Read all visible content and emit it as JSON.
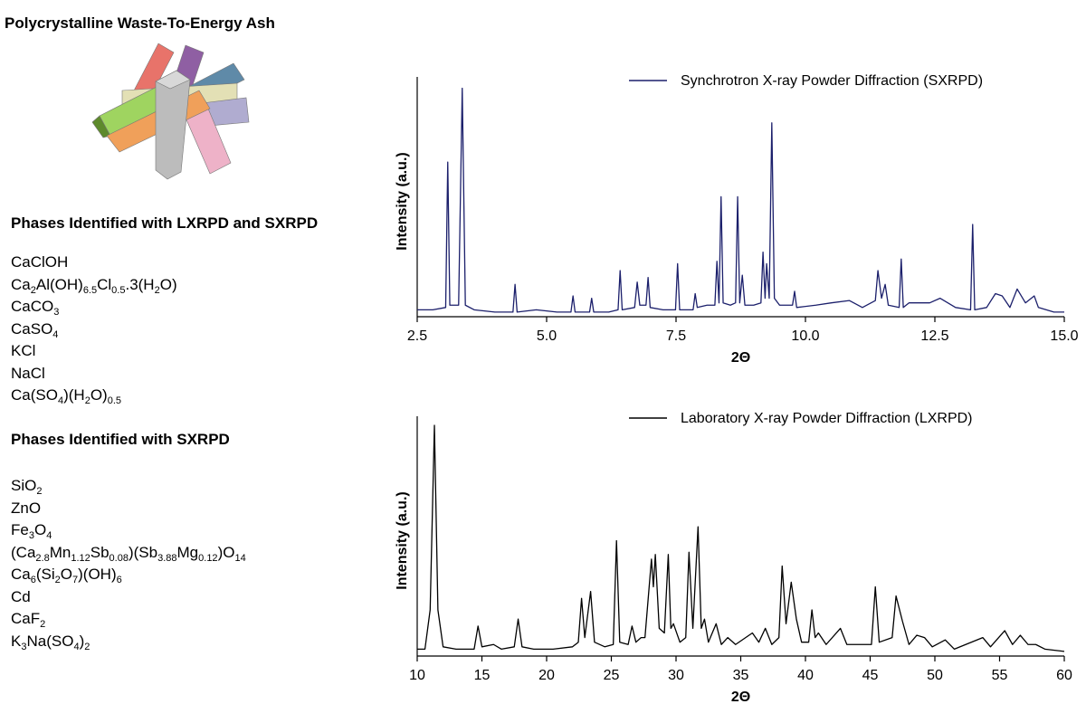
{
  "title": "Polycrystalline Waste-To-Energy Ash",
  "phases_both": {
    "heading": "Phases Identified with LXRPD and SXRPD",
    "formulas": [
      [
        "CaClOH"
      ],
      [
        "Ca",
        "2",
        "Al(OH)",
        "6.5",
        "Cl",
        "0.5",
        ".3(H",
        "2",
        "O)"
      ],
      [
        "CaCO",
        "3"
      ],
      [
        "CaSO",
        "4"
      ],
      [
        "KCl"
      ],
      [
        "NaCl"
      ],
      [
        "Ca(SO",
        "4",
        ")(H",
        "2",
        "O)",
        "0.5"
      ]
    ]
  },
  "phases_sxrpd": {
    "heading": "Phases Identified with SXRPD",
    "formulas": [
      [
        "SiO",
        "2"
      ],
      [
        "ZnO"
      ],
      [
        "Fe",
        "3",
        "O",
        "4"
      ],
      [
        "(Ca",
        "2.8",
        "Mn",
        "1.12",
        "Sb",
        "0.08",
        ")(Sb",
        "3.88",
        "Mg",
        "0.12",
        ")O",
        "14"
      ],
      [
        "Ca",
        "6",
        "(Si",
        "2",
        "O",
        "7",
        ")(OH)",
        "6"
      ],
      [
        "Cd"
      ],
      [
        "CaF",
        "2"
      ],
      [
        "K",
        "3",
        "Na(SO",
        "4",
        ")",
        "2"
      ]
    ]
  },
  "chart_data": [
    {
      "type": "line",
      "xlabel": "2Θ",
      "ylabel": "Intensity (a.u.)",
      "xlim": [
        2.5,
        15
      ],
      "ylim": [
        0,
        100
      ],
      "xticks": [
        2.5,
        {
          "value": 5,
          "label": "5.0"
        },
        7.5,
        {
          "value": 10,
          "label": "10.0"
        },
        12.5,
        {
          "value": 15,
          "label": "15.0"
        }
      ],
      "x": [
        2.5,
        2.8,
        3.05,
        3.09,
        3.13,
        3.3,
        3.37,
        3.43,
        3.6,
        4.0,
        4.35,
        4.39,
        4.43,
        4.8,
        5.2,
        5.47,
        5.51,
        5.55,
        5.83,
        5.87,
        5.91,
        6.2,
        6.38,
        6.42,
        6.46,
        6.7,
        6.75,
        6.8,
        6.92,
        6.96,
        7.0,
        7.25,
        7.49,
        7.53,
        7.57,
        7.83,
        7.87,
        7.91,
        8.1,
        8.25,
        8.29,
        8.33,
        8.37,
        8.41,
        8.55,
        8.65,
        8.69,
        8.73,
        8.78,
        8.83,
        9.0,
        9.14,
        9.18,
        9.22,
        9.25,
        9.3,
        9.35,
        9.4,
        9.5,
        9.75,
        9.79,
        9.83,
        10.2,
        10.5,
        10.85,
        11.1,
        11.35,
        11.4,
        11.47,
        11.54,
        11.6,
        11.81,
        11.85,
        11.89,
        12.0,
        12.4,
        12.6,
        12.9,
        13.19,
        13.23,
        13.27,
        13.5,
        13.67,
        13.8,
        13.95,
        14.09,
        14.25,
        14.42,
        14.5,
        14.8,
        15.0
      ],
      "series": [
        {
          "name": "Synchrotron X-ray Powder Diffraction (SXRPD)",
          "color": "#1b1f6b",
          "values": [
            3,
            3,
            4,
            67,
            5,
            5,
            99,
            5,
            3,
            2,
            2,
            14,
            2,
            3,
            2,
            2,
            9,
            2,
            2,
            8,
            2,
            2,
            3,
            20,
            3,
            4,
            15,
            5,
            5,
            17,
            4,
            3,
            3,
            23,
            3,
            3,
            10,
            4,
            5,
            5,
            24,
            6,
            52,
            6,
            5,
            6,
            52,
            6,
            18,
            5,
            5,
            6,
            28,
            8,
            23,
            8,
            84,
            8,
            5,
            5,
            11,
            4,
            5,
            6,
            7,
            4,
            7,
            20,
            8,
            14,
            5,
            4,
            25,
            4,
            6,
            6,
            8,
            4,
            3,
            40,
            3,
            4,
            10,
            9,
            4,
            12,
            6,
            9,
            4,
            2,
            2
          ]
        }
      ]
    },
    {
      "type": "line",
      "xlabel": "2Θ",
      "ylabel": "Intensity (a.u.)",
      "xlim": [
        10,
        60
      ],
      "ylim": [
        0,
        100
      ],
      "xticks": [
        10,
        15,
        20,
        25,
        30,
        35,
        40,
        45,
        50,
        55,
        60
      ],
      "x": [
        10,
        10.6,
        11.0,
        11.33,
        11.6,
        12.0,
        13,
        14.4,
        14.7,
        15.0,
        15.9,
        16.5,
        17.5,
        17.8,
        18.1,
        19,
        20.5,
        22,
        22.45,
        22.7,
        22.95,
        23.4,
        23.7,
        24.5,
        25.15,
        25.4,
        25.65,
        26.3,
        26.6,
        26.9,
        27.3,
        27.6,
        28.1,
        28.25,
        28.4,
        28.7,
        29.1,
        29.4,
        29.6,
        29.8,
        30.3,
        30.75,
        31.0,
        31.3,
        31.7,
        31.95,
        32.2,
        32.5,
        33.1,
        33.5,
        34.0,
        34.6,
        35.9,
        36.4,
        36.9,
        37.4,
        37.95,
        38.2,
        38.5,
        38.9,
        39.3,
        39.7,
        40.25,
        40.5,
        40.75,
        41.0,
        41.6,
        42.7,
        43.2,
        45.1,
        45.4,
        45.7,
        46.7,
        47.0,
        47.5,
        48.0,
        48.6,
        49.2,
        49.8,
        50.8,
        51.5,
        53.7,
        54.3,
        55.4,
        56.0,
        56.6,
        57.2,
        57.8,
        58.5,
        60
      ],
      "series": [
        {
          "name": "Laboratory X-ray Powder Diffraction (LXRPD)",
          "color": "#000000",
          "values": [
            3,
            3,
            20,
            100,
            20,
            4,
            3,
            3,
            13,
            4,
            5,
            3,
            4,
            16,
            4,
            3,
            3,
            4,
            6,
            25,
            8,
            28,
            6,
            4,
            5,
            50,
            6,
            5,
            13,
            6,
            8,
            8,
            42,
            30,
            44,
            12,
            10,
            44,
            12,
            14,
            6,
            8,
            45,
            12,
            56,
            12,
            16,
            6,
            14,
            5,
            8,
            5,
            10,
            6,
            12,
            5,
            8,
            39,
            14,
            32,
            16,
            6,
            6,
            20,
            8,
            10,
            5,
            12,
            5,
            5,
            30,
            6,
            8,
            26,
            15,
            5,
            9,
            8,
            4,
            7,
            3,
            8,
            4,
            11,
            5,
            9,
            5,
            5,
            3,
            2
          ]
        }
      ]
    }
  ]
}
